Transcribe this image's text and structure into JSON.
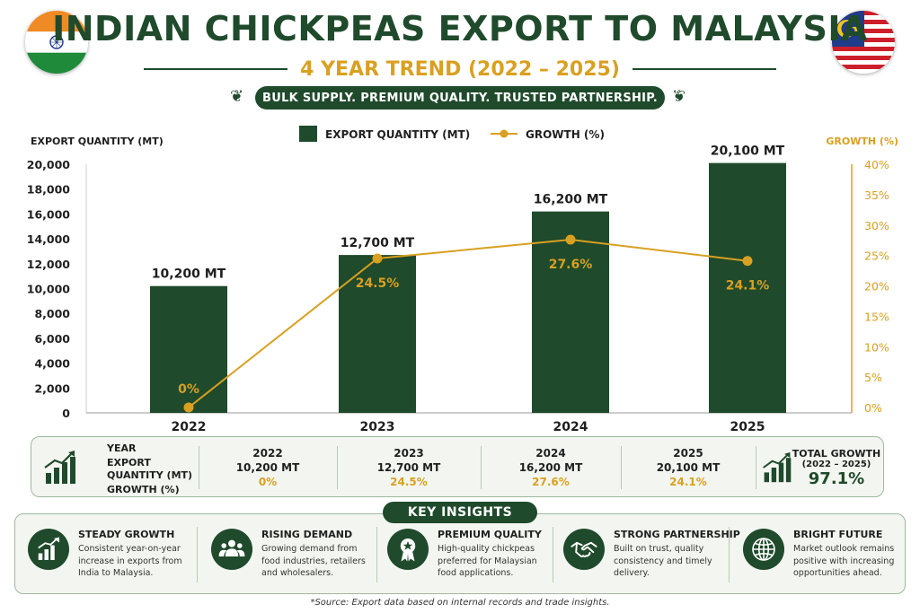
{
  "header": {
    "title": "INDIAN CHICKPEAS EXPORT TO MALAYSIA",
    "subtitle": "4 YEAR TREND (2022 – 2025)",
    "tagline": "BULK SUPPLY. PREMIUM QUALITY. TRUSTED PARTNERSHIP."
  },
  "flags": {
    "left": "india-flag",
    "right": "malaysia-flag"
  },
  "colors": {
    "bar": "#1f4a2b",
    "line": "#d9a021",
    "accent": "#d9a021",
    "dark_green": "#1f4a2b"
  },
  "chart_data": {
    "type": "bar",
    "categories": [
      "2022",
      "2023",
      "2024",
      "2025"
    ],
    "series": [
      {
        "name": "EXPORT QUANTITY (MT)",
        "type": "bar",
        "axis": "left",
        "values": [
          10200,
          12700,
          16200,
          20100
        ],
        "labels": [
          "10,200 MT",
          "12,700 MT",
          "16,200 MT",
          "20,100 MT"
        ]
      },
      {
        "name": "GROWTH (%)",
        "type": "line",
        "axis": "right",
        "values": [
          0,
          24.5,
          27.6,
          24.1
        ],
        "labels": [
          "0%",
          "24.5%",
          "27.6%",
          "24.1%"
        ]
      }
    ],
    "ylabel": "EXPORT QUANTITY (MT)",
    "y2label": "GROWTH (%)",
    "ylim": [
      0,
      20000
    ],
    "y2lim": [
      0,
      40
    ],
    "yticks": [
      "0",
      "2,000",
      "4,000",
      "6,000",
      "8,000",
      "10,000",
      "12,000",
      "14,000",
      "16,000",
      "18,000",
      "20,000"
    ],
    "y2ticks": [
      "0%",
      "5%",
      "10%",
      "15%",
      "20%",
      "25%",
      "30%",
      "35%",
      "40%"
    ],
    "legend": "top-center"
  },
  "table": {
    "row_labels": [
      "YEAR",
      "EXPORT QUANTITY (MT)",
      "GROWTH (%)"
    ],
    "columns": [
      {
        "year": "2022",
        "qty": "10,200 MT",
        "growth": "0%"
      },
      {
        "year": "2023",
        "qty": "12,700 MT",
        "growth": "24.5%"
      },
      {
        "year": "2024",
        "qty": "16,200 MT",
        "growth": "27.6%"
      },
      {
        "year": "2025",
        "qty": "20,100 MT",
        "growth": "24.1%"
      }
    ],
    "total_label": "TOTAL GROWTH",
    "total_period": "(2022 – 2025)",
    "total_value": "97.1%"
  },
  "insights": {
    "heading": "KEY INSIGHTS",
    "items": [
      {
        "icon": "bar-chart-growth-icon",
        "title": "STEADY GROWTH",
        "text": "Consistent year-on-year increase in exports from India to Malaysia."
      },
      {
        "icon": "people-group-icon",
        "title": "RISING DEMAND",
        "text": "Growing demand from food industries, retailers and wholesalers."
      },
      {
        "icon": "quality-badge-icon",
        "title": "PREMIUM QUALITY",
        "text": "High-quality chickpeas preferred for Malaysian food applications."
      },
      {
        "icon": "handshake-icon",
        "title": "STRONG PARTNERSHIP",
        "text": "Built on trust, quality consistency and timely delivery."
      },
      {
        "icon": "globe-icon",
        "title": "BRIGHT FUTURE",
        "text": "Market outlook remains positive with increasing opportunities ahead."
      }
    ]
  },
  "source": "*Source: Export data based on internal records and trade insights."
}
